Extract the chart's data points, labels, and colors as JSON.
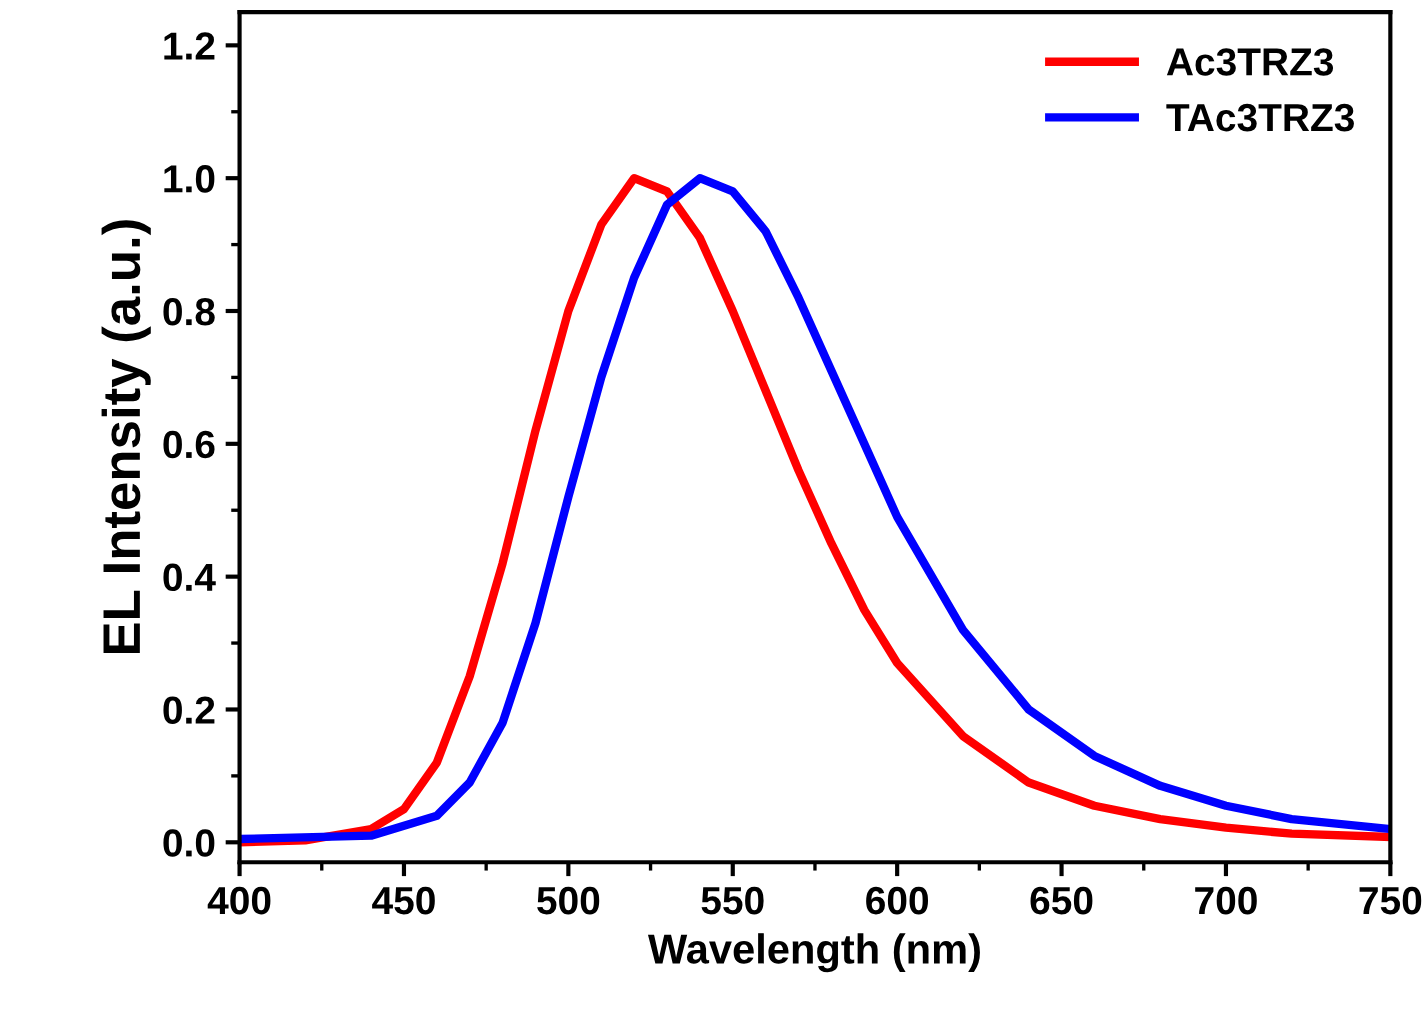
{
  "chart_data": {
    "type": "line",
    "xlabel": "Wavelength (nm)",
    "ylabel": "EL Intensity (a.u.)",
    "xlim": [
      400,
      750
    ],
    "ylim": [
      -0.03,
      1.25
    ],
    "xticks": [
      400,
      450,
      500,
      550,
      600,
      650,
      700,
      750
    ],
    "yticks": [
      {
        "value": 0,
        "label": "0.0"
      },
      {
        "value": 0.2,
        "label": "0.2"
      },
      {
        "value": 0.4,
        "label": "0.4"
      },
      {
        "value": 0.6,
        "label": "0.6"
      },
      {
        "value": 0.8,
        "label": "0.8"
      },
      {
        "value": 1.0,
        "label": "1.0"
      },
      {
        "value": 1.2,
        "label": "1.2"
      }
    ],
    "legend": "top right",
    "grid": false,
    "marker": "none",
    "line_style": "solid",
    "series": [
      {
        "name": "Ac3TRZ3",
        "color": "#ff0000",
        "x": [
          400,
          420,
          440,
          450,
          460,
          470,
          480,
          490,
          500,
          510,
          520,
          530,
          540,
          550,
          560,
          570,
          580,
          590,
          600,
          620,
          640,
          660,
          680,
          700,
          720,
          750
        ],
        "values": [
          0,
          0.003,
          0.02,
          0.05,
          0.12,
          0.25,
          0.42,
          0.62,
          0.8,
          0.93,
          1.0,
          0.98,
          0.91,
          0.8,
          0.68,
          0.56,
          0.45,
          0.35,
          0.27,
          0.16,
          0.09,
          0.055,
          0.035,
          0.022,
          0.013,
          0.008
        ]
      },
      {
        "name": "TAc3TRZ3",
        "color": "#0000ff",
        "x": [
          400,
          440,
          460,
          470,
          480,
          490,
          500,
          510,
          520,
          530,
          540,
          550,
          560,
          570,
          580,
          590,
          600,
          620,
          640,
          660,
          680,
          700,
          720,
          750
        ],
        "values": [
          0.005,
          0.01,
          0.04,
          0.09,
          0.18,
          0.33,
          0.52,
          0.7,
          0.85,
          0.96,
          1.0,
          0.98,
          0.92,
          0.82,
          0.71,
          0.6,
          0.49,
          0.32,
          0.2,
          0.13,
          0.085,
          0.055,
          0.035,
          0.02
        ]
      }
    ]
  }
}
